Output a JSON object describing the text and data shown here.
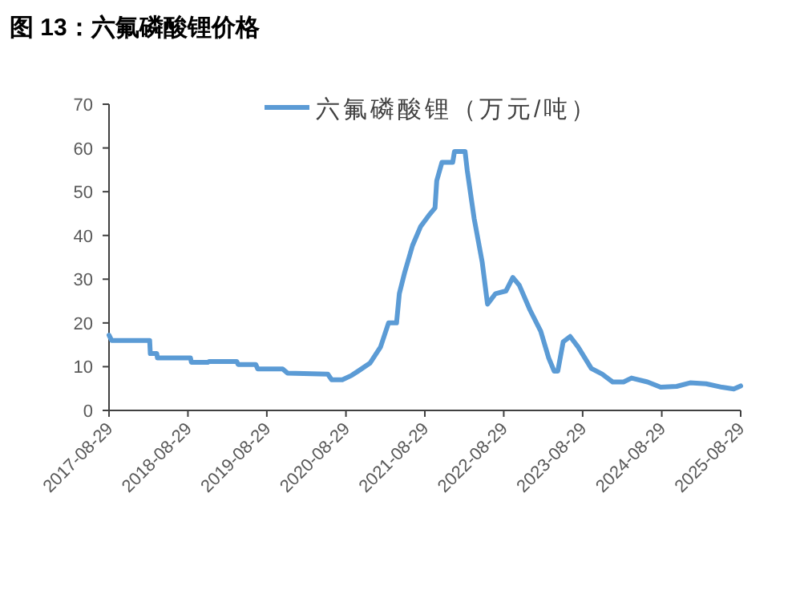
{
  "chart_data": {
    "type": "line",
    "title": "图 13：六氟磷酸锂价格",
    "x": [
      "2017-08-29",
      "2017-09-10",
      "2018-03-05",
      "2018-03-08",
      "2018-04-07",
      "2018-04-10",
      "2018-09-10",
      "2018-09-14",
      "2018-11-29",
      "2018-12-05",
      "2019-04-12",
      "2019-04-18",
      "2019-07-09",
      "2019-07-18",
      "2019-11-10",
      "2019-12-03",
      "2020-06-06",
      "2020-06-24",
      "2020-08-12",
      "2020-09-24",
      "2020-10-25",
      "2020-12-18",
      "2021-02-05",
      "2021-03-14",
      "2021-04-20",
      "2021-05-03",
      "2021-05-28",
      "2021-07-03",
      "2021-08-09",
      "2021-09-15",
      "2021-10-15",
      "2021-10-23",
      "2021-11-16",
      "2022-01-05",
      "2022-01-13",
      "2022-03-03",
      "2022-03-13",
      "2022-04-14",
      "2022-05-21",
      "2022-06-15",
      "2022-07-22",
      "2022-09-08",
      "2022-10-10",
      "2022-11-09",
      "2022-12-28",
      "2023-02-16",
      "2023-03-25",
      "2023-04-19",
      "2023-05-06",
      "2023-05-31",
      "2023-07-02",
      "2023-08-08",
      "2023-10-08",
      "2023-11-27",
      "2024-01-15",
      "2024-03-05",
      "2024-04-11",
      "2024-06-24",
      "2024-08-24",
      "2024-11-06",
      "2025-01-07",
      "2025-03-22",
      "2025-06-04",
      "2025-07-28",
      "2025-08-29"
    ],
    "series": [
      {
        "name": "六氟磷酸锂（万元/吨）",
        "color": "#5b9bd5",
        "values": [
          17.2,
          16,
          16,
          13,
          13,
          12,
          12,
          11,
          11,
          11.2,
          11.2,
          10.5,
          10.5,
          9.5,
          9.5,
          8.5,
          8.3,
          7,
          7,
          8,
          9,
          10.8,
          14.5,
          20,
          20,
          26.7,
          31.6,
          37.7,
          42,
          44.5,
          46.3,
          52.5,
          56.7,
          56.7,
          59.2,
          59.2,
          54.9,
          43.9,
          34,
          24.3,
          26.7,
          27.3,
          30.4,
          28.6,
          23,
          18.1,
          12,
          9,
          9,
          15.7,
          16.9,
          14.5,
          9.6,
          8.3,
          6.5,
          6.5,
          7.4,
          6.5,
          5.3,
          5.5,
          6.3,
          6.1,
          5.3,
          4.9,
          5.6
        ]
      }
    ],
    "xlim": [
      "2017-08-29",
      "2025-08-29"
    ],
    "xticks": [
      "2017-08-29",
      "2018-08-29",
      "2019-08-29",
      "2020-08-29",
      "2021-08-29",
      "2022-08-29",
      "2023-08-29",
      "2024-08-29",
      "2025-08-29"
    ],
    "ylim": [
      0,
      70
    ],
    "yticks": [
      0,
      10,
      20,
      30,
      40,
      50,
      60,
      70
    ],
    "legend": "top",
    "grid": false
  }
}
